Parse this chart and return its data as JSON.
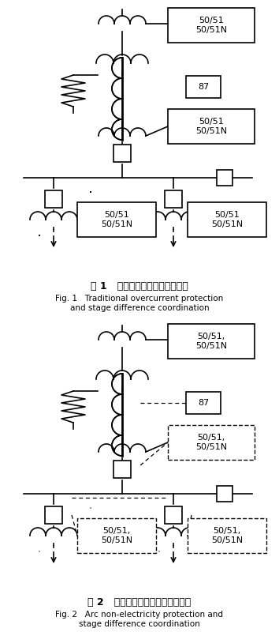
{
  "fig1_title_cn": "图 1   传统过流型保护和级差配合",
  "fig1_title_en1": "Fig. 1   Traditional overcurrent protection",
  "fig1_title_en2": "and stage difference coordination",
  "fig2_title_cn": "图 2   弧光非电量型保护和级差配合",
  "fig2_title_en1": "Fig. 2   Arc non-electricity protection and",
  "fig2_title_en2": "stage difference coordination",
  "box_label_top": "50/51\n50/51N",
  "box_label_top2": "50/51,\n50/51N",
  "box_label_mid": "50/51\n50/51N",
  "box_label_mid2": "50/51,\n50/51N",
  "box_label_bot_left": "50/51\n50/51N",
  "box_label_bot_left2": "50/51,\n50/51N",
  "box_label_bot_right": "50/51\n50/51N",
  "box_label_bot_right2": "50/51,\n50/51N",
  "relay_label": "87",
  "bg_color": "#ffffff"
}
